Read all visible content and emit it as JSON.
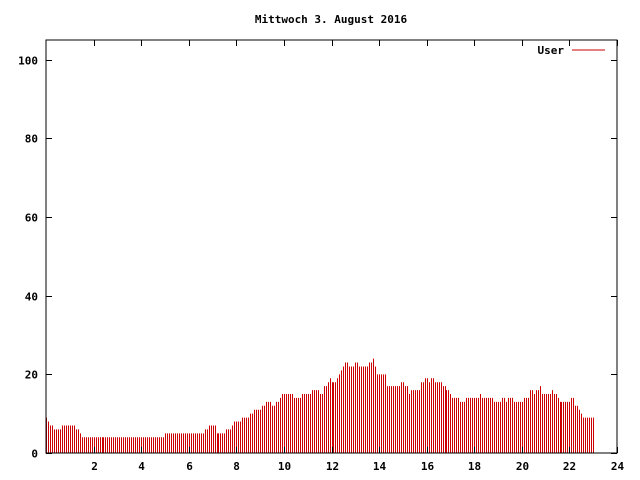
{
  "chart_data": {
    "type": "bar",
    "title": "Mittwoch 3. August 2016",
    "xlabel": "",
    "ylabel": "",
    "xlim": [
      0,
      24
    ],
    "ylim": [
      0,
      105
    ],
    "xticks": [
      2,
      4,
      6,
      8,
      10,
      12,
      14,
      16,
      18,
      20,
      22,
      24
    ],
    "yticks": [
      0,
      20,
      40,
      60,
      80,
      100
    ],
    "grid": false,
    "legend_position": "top-right",
    "series": [
      {
        "name": "User",
        "color": "#cc0000",
        "interval_minutes": 5,
        "values": [
          9,
          8,
          7,
          7,
          6,
          6,
          6,
          6,
          7,
          7,
          7,
          7,
          7,
          7,
          7,
          6,
          6,
          5,
          4,
          4,
          4,
          4,
          4,
          4,
          4,
          4,
          4,
          4,
          4,
          4,
          4,
          4,
          4,
          4,
          4,
          4,
          4,
          4,
          4,
          4,
          4,
          4,
          4,
          4,
          4,
          4,
          4,
          4,
          4,
          4,
          4,
          4,
          4,
          4,
          4,
          4,
          4,
          4,
          4,
          4,
          5,
          5,
          5,
          5,
          5,
          5,
          5,
          5,
          5,
          5,
          5,
          5,
          5,
          5,
          5,
          5,
          5,
          5,
          5,
          5,
          6,
          6,
          7,
          7,
          7,
          7,
          5,
          5,
          5,
          5,
          5,
          6,
          6,
          6,
          7,
          8,
          8,
          8,
          8,
          9,
          9,
          9,
          9,
          10,
          10,
          11,
          11,
          11,
          11,
          12,
          12,
          13,
          13,
          13,
          12,
          12,
          13,
          13,
          14,
          15,
          15,
          15,
          15,
          15,
          15,
          14,
          14,
          14,
          14,
          15,
          15,
          15,
          15,
          15,
          16,
          16,
          16,
          16,
          15,
          15,
          17,
          17,
          18,
          19,
          18,
          18,
          18,
          19,
          20,
          21,
          22,
          23,
          23,
          22,
          22,
          22,
          23,
          23,
          22,
          22,
          22,
          22,
          22,
          23,
          23,
          24,
          22,
          20,
          20,
          20,
          20,
          20,
          17,
          17,
          17,
          17,
          17,
          17,
          17,
          18,
          18,
          17,
          17,
          15,
          16,
          16,
          16,
          16,
          16,
          18,
          18,
          19,
          19,
          18,
          19,
          19,
          18,
          18,
          18,
          18,
          17,
          17,
          16,
          16,
          15,
          14,
          14,
          14,
          14,
          13,
          13,
          13,
          14,
          14,
          14,
          14,
          14,
          14,
          14,
          15,
          14,
          14,
          14,
          14,
          14,
          14,
          13,
          13,
          13,
          13,
          14,
          14,
          13,
          14,
          14,
          14,
          13,
          13,
          13,
          13,
          13,
          14,
          14,
          14,
          16,
          16,
          15,
          16,
          16,
          17,
          15,
          15,
          15,
          15,
          15,
          16,
          15,
          15,
          14,
          13,
          13,
          13,
          13,
          13,
          13,
          14,
          14,
          12,
          12,
          11,
          10,
          9,
          9,
          9,
          9,
          9,
          9
        ]
      }
    ]
  }
}
